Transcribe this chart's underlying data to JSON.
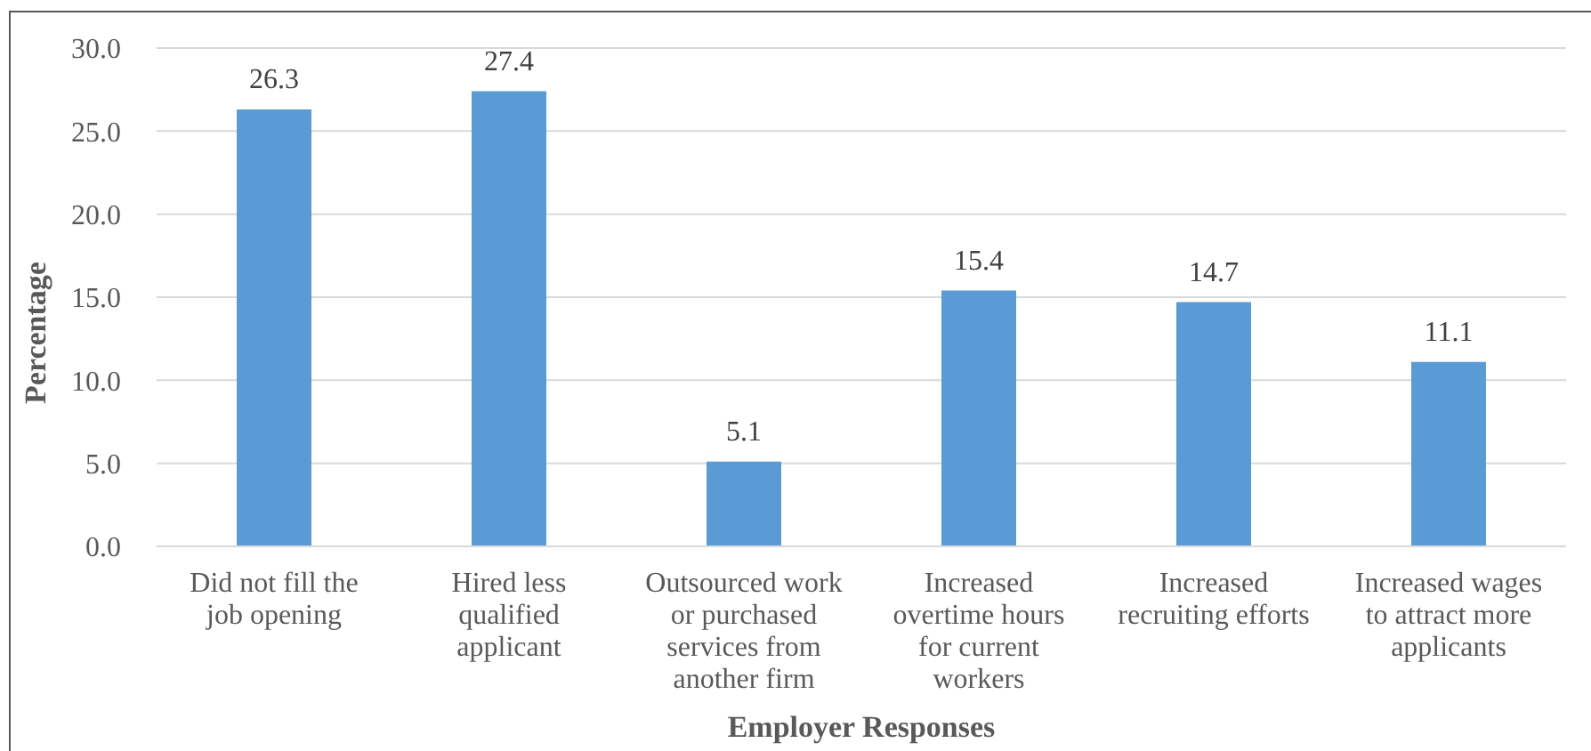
{
  "chart_data": {
    "type": "bar",
    "xlabel": "Employer Responses",
    "ylabel": "Percentage",
    "categories": [
      "Did not fill the job opening",
      "Hired less qualified applicant",
      "Outsourced work or purchased services from another firm",
      "Increased overtime hours for current workers",
      "Increased recruiting efforts",
      "Increased wages to attract more applicants"
    ],
    "values": [
      26.3,
      27.4,
      5.1,
      15.4,
      14.7,
      11.1
    ],
    "color": "#5b9bd5",
    "ylim": [
      0,
      30
    ],
    "yticks": [
      {
        "value": 0,
        "label": "0.0"
      },
      {
        "value": 5,
        "label": "5.0"
      },
      {
        "value": 10,
        "label": "10.0"
      },
      {
        "value": 15,
        "label": "15.0"
      },
      {
        "value": 20,
        "label": "20.0"
      },
      {
        "value": 25,
        "label": "25.0"
      },
      {
        "value": 30,
        "label": "30.0"
      }
    ],
    "grid": "y",
    "data_labels": true
  }
}
